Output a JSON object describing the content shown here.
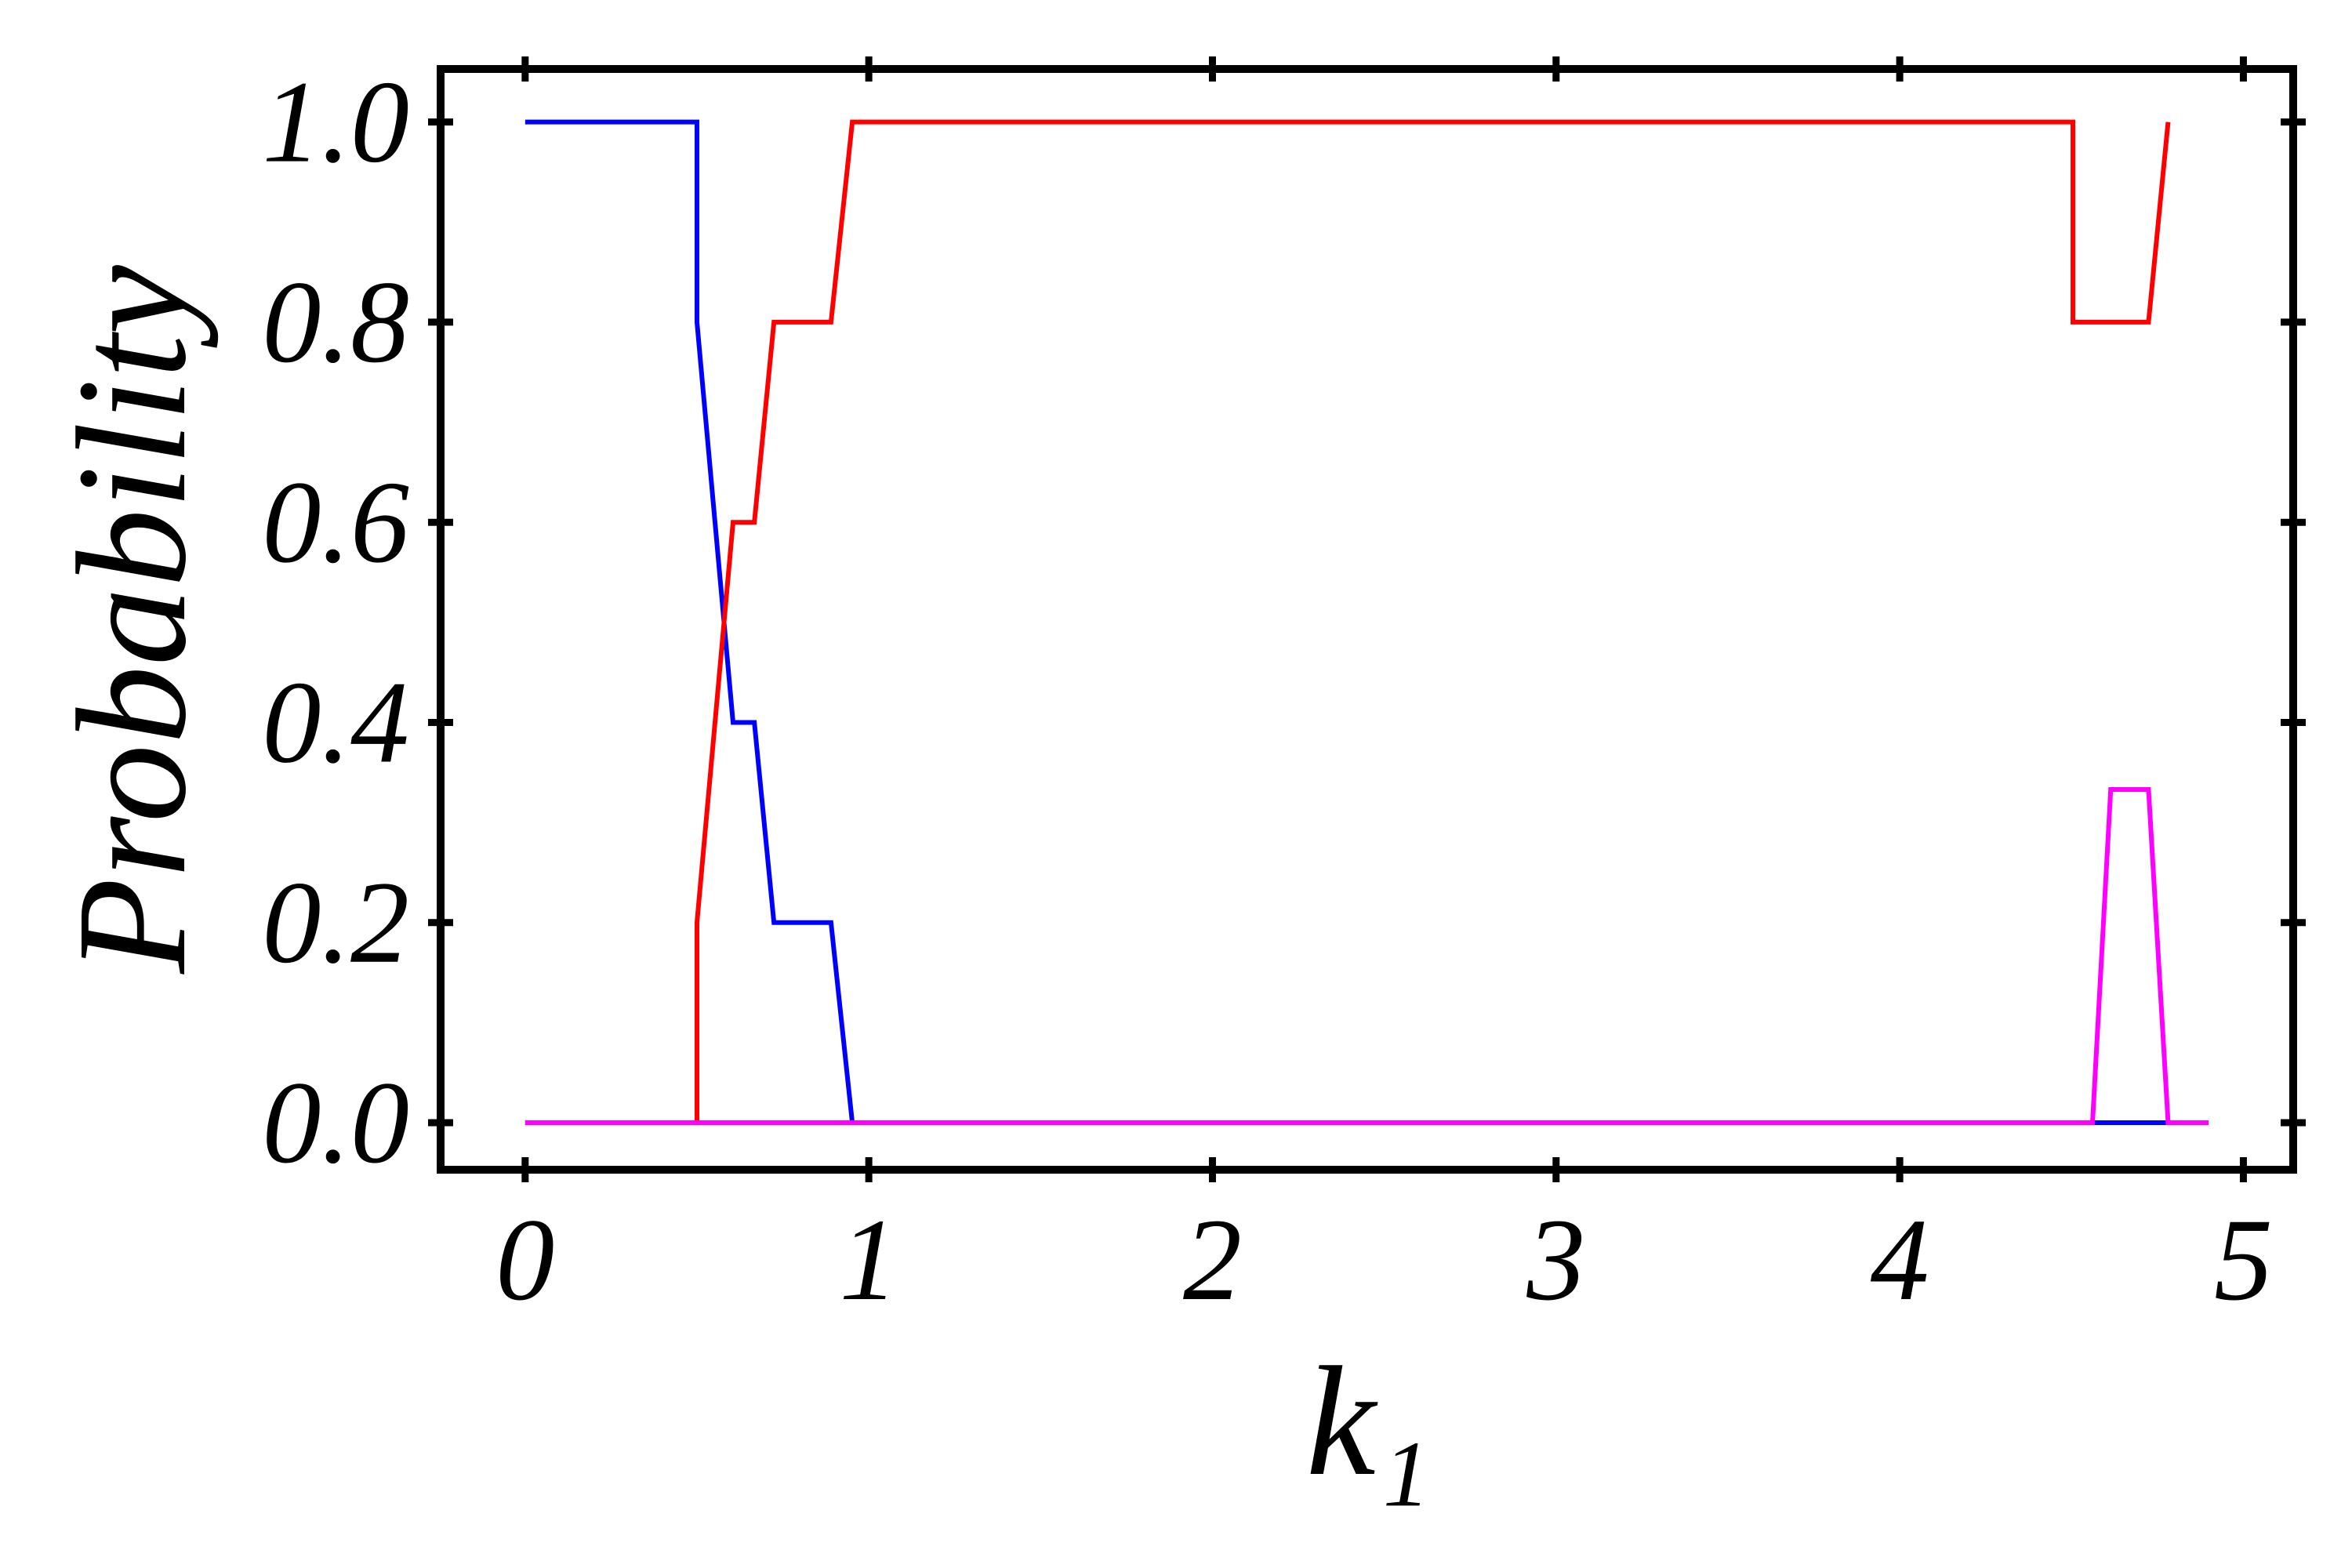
{
  "chart_data": {
    "type": "line",
    "xlabel": "k₁",
    "ylabel": "Probability",
    "x": [
      0,
      0.5,
      0.5,
      0.605,
      0.667,
      0.724,
      0.89,
      0.952,
      4.504,
      4.504,
      4.561,
      4.614,
      4.724,
      4.781,
      4.899
    ],
    "series": [
      {
        "color": "#0000ff",
        "values": [
          1,
          1,
          0.8,
          0.4,
          0.4,
          0.2,
          0.2,
          0,
          0,
          0,
          0,
          0,
          0,
          0,
          null
        ]
      },
      {
        "color": "#ff0000",
        "values": [
          0,
          0,
          0.2,
          0.6,
          0.6,
          0.8,
          0.8,
          1,
          1,
          0.8,
          0.8,
          0.8,
          0.8,
          1,
          null
        ]
      },
      {
        "color": "#ff00ff",
        "values": [
          0,
          0,
          0,
          0,
          0,
          0,
          0,
          0,
          0,
          0,
          0,
          0.333,
          0.333,
          0,
          0
        ]
      }
    ],
    "xlim": [
      -0.246,
      5.145
    ],
    "ylim": [
      -0.047,
      1.053
    ],
    "xticks": [
      0,
      1,
      2,
      3,
      4,
      5
    ],
    "yticks": [
      {
        "value": 0,
        "label": "0.0"
      },
      {
        "value": 0.2,
        "label": "0.2"
      },
      {
        "value": 0.4,
        "label": "0.4"
      },
      {
        "value": 0.6,
        "label": "0.6"
      },
      {
        "value": 0.8,
        "label": "0.8"
      },
      {
        "value": 1,
        "label": "1.0"
      }
    ]
  }
}
